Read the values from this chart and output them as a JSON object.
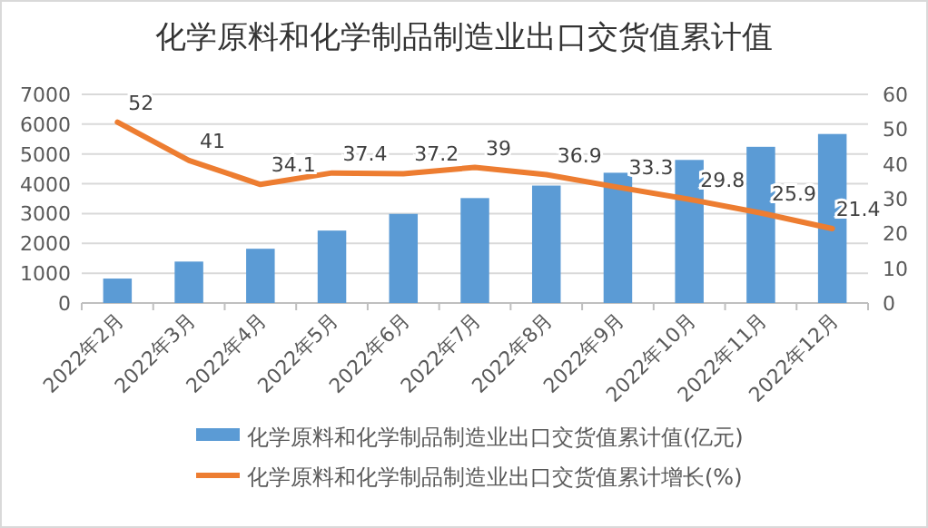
{
  "chart_data": {
    "type": "bar",
    "title": "化学原料和化学制品制造业出口交货值累计值",
    "categories": [
      "2022年2月",
      "2022年3月",
      "2022年4月",
      "2022年5月",
      "2022年6月",
      "2022年7月",
      "2022年8月",
      "2022年9月",
      "2022年10月",
      "2022年11月",
      "2022年12月"
    ],
    "series": [
      {
        "name": "化学原料和化学制品制造业出口交货值累计值(亿元)",
        "color": "#5b9bd5",
        "values": [
          820,
          1390,
          1820,
          2430,
          2990,
          3520,
          3940,
          4370,
          4800,
          5240,
          5670
        ]
      },
      {
        "name": "化学原料和化学制品制造业出口交货值累计增长(%)",
        "type": "line",
        "axis": "y2",
        "color": "#ed7d31",
        "values": [
          52,
          41,
          34.1,
          37.4,
          37.2,
          39,
          36.9,
          33.3,
          29.8,
          25.9,
          21.4
        ],
        "value_labels": [
          "52",
          "41",
          "34.1",
          "37.4",
          "37.2",
          "39",
          "36.9",
          "33.3",
          "29.8",
          "25.9",
          "21.4"
        ]
      }
    ],
    "ylim": [
      0,
      7000
    ],
    "yticks": [
      0,
      1000,
      2000,
      3000,
      4000,
      5000,
      6000,
      7000
    ],
    "y2lim": [
      0,
      60
    ],
    "y2ticks": [
      0,
      10,
      20,
      30,
      40,
      50,
      60
    ],
    "grid": "y",
    "legend": "bottom"
  }
}
